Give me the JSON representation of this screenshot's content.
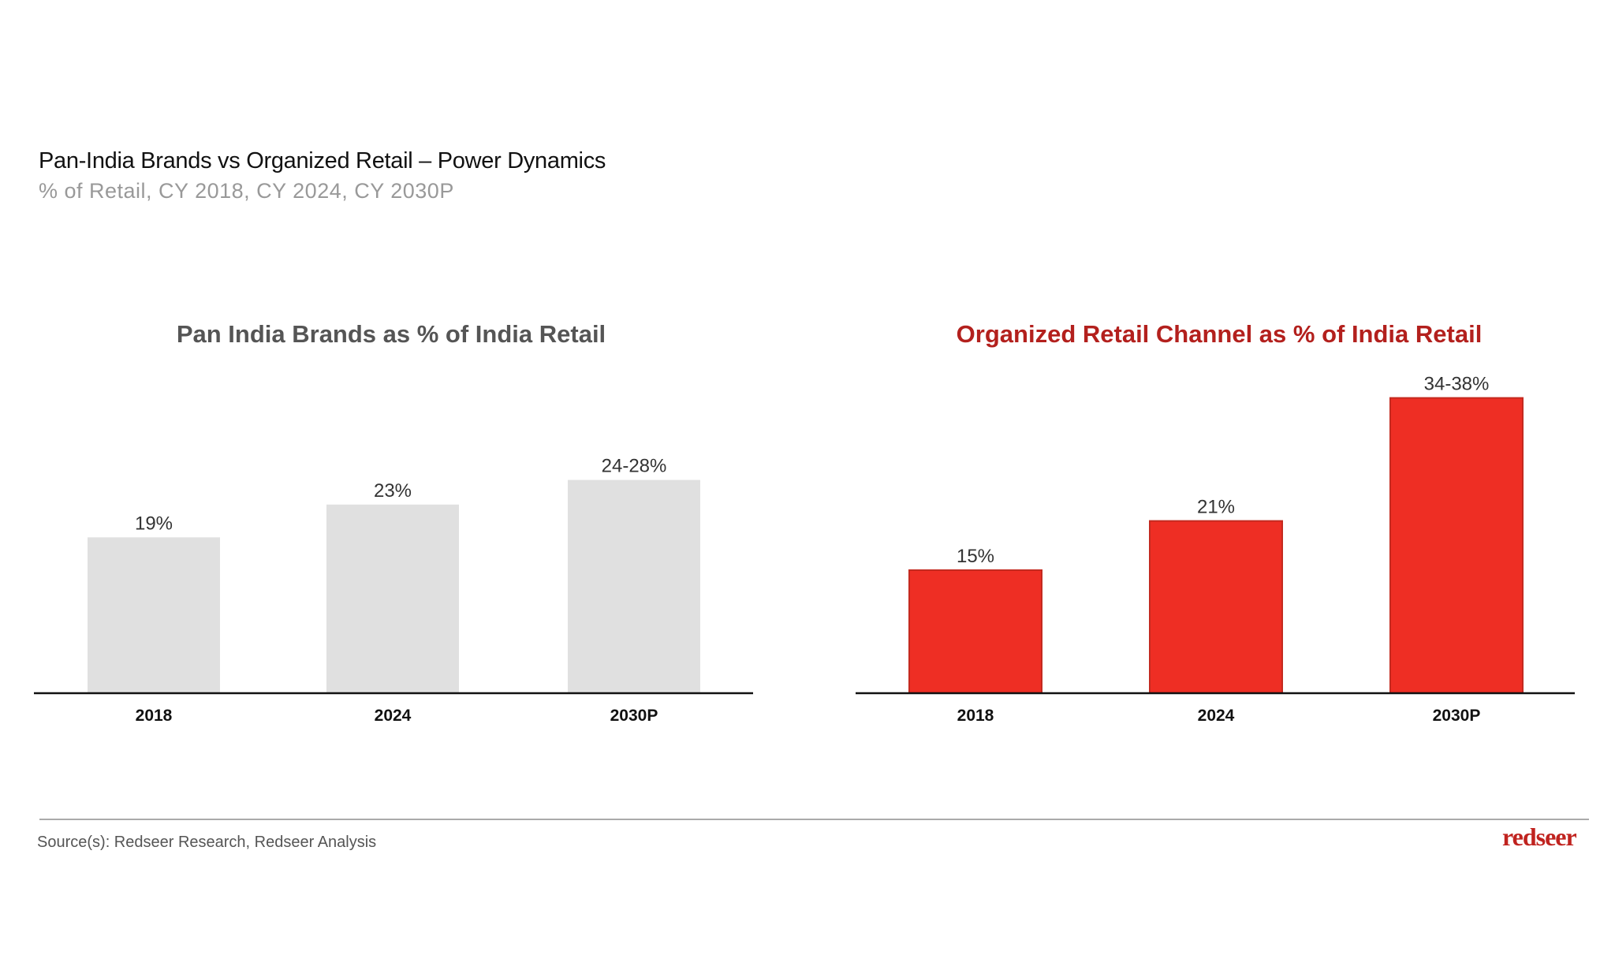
{
  "title": "Pan-India Brands vs Organized Retail – Power Dynamics",
  "subtitle": "% of Retail, CY 2018, CY 2024, CY 2030P",
  "chart_data": [
    {
      "type": "bar",
      "title": "Pan India Brands as % of India Retail",
      "title_color": "#555555",
      "bar_color": "#e0e0e0",
      "categories": [
        "2018",
        "2024",
        "2030P"
      ],
      "values": [
        19,
        23,
        [
          24,
          28
        ]
      ],
      "data_labels": [
        "19%",
        "23%",
        "24-28%"
      ],
      "ylim": [
        0,
        40
      ],
      "grid": false,
      "y_axis_shown": false
    },
    {
      "type": "bar",
      "title": "Organized Retail Channel as % of India Retail",
      "title_color": "#b3201d",
      "bar_color": "#ee2e24",
      "categories": [
        "2018",
        "2024",
        "2030P"
      ],
      "values": [
        15,
        21,
        [
          34,
          38
        ]
      ],
      "data_labels": [
        "15%",
        "21%",
        "34-38%"
      ],
      "ylim": [
        0,
        40
      ],
      "grid": false,
      "y_axis_shown": false
    }
  ],
  "footer": {
    "source": "Source(s): Redseer Research, Redseer Analysis",
    "logo": "redseer"
  }
}
